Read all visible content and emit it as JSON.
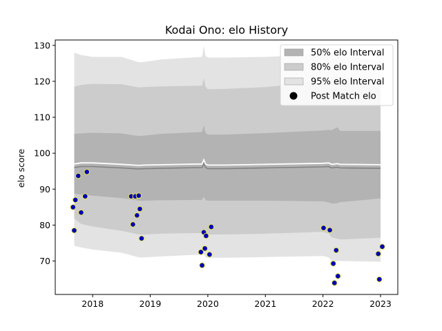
{
  "chart_data": {
    "type": "line",
    "title": "Kodai Ono: elo History",
    "xlabel": "",
    "ylabel": "elo score",
    "xlim": [
      2017.35,
      2023.3
    ],
    "ylim": [
      60.7,
      131.5
    ],
    "xticks": [
      2018,
      2019,
      2020,
      2021,
      2022,
      2023
    ],
    "yticks": [
      70,
      80,
      90,
      100,
      110,
      120,
      130
    ],
    "legend_placement": "upper right",
    "legend": [
      {
        "label": "50% elo Interval",
        "kind": "band",
        "color": "#b3b3b3"
      },
      {
        "label": "80% elo Interval",
        "kind": "band",
        "color": "#cccccc"
      },
      {
        "label": "95% elo Interval",
        "kind": "band",
        "color": "#e3e3e3"
      },
      {
        "label": "Post Match elo",
        "kind": "point",
        "color": "#000000"
      }
    ],
    "timeline": [
      2017.68,
      2017.8,
      2018.0,
      2018.5,
      2018.8,
      2018.9,
      2019.2,
      2019.9,
      2019.93,
      2019.96,
      2020.0,
      2020.3,
      2021.0,
      2022.0,
      2022.1,
      2022.15,
      2022.25,
      2022.3,
      2023.0
    ],
    "median": [
      96.0,
      96.3,
      96.3,
      95.9,
      95.6,
      95.7,
      95.8,
      96.0,
      97.2,
      96.0,
      95.7,
      95.7,
      95.9,
      96.2,
      96.3,
      95.9,
      96.1,
      95.9,
      95.8
    ],
    "band_50": {
      "upper": [
        105.4,
        105.5,
        105.7,
        105.5,
        104.8,
        104.9,
        105.4,
        105.9,
        107.8,
        105.7,
        105.2,
        105.2,
        105.6,
        106.3,
        106.5,
        106.4,
        107.2,
        106.2,
        106.2
      ],
      "lower": [
        88.8,
        88.5,
        88.2,
        87.5,
        86.8,
        86.8,
        86.9,
        87.0,
        87.9,
        86.9,
        86.8,
        86.8,
        86.8,
        86.6,
        86.3,
        86.0,
        86.1,
        86.4,
        87.4
      ]
    },
    "band_80": {
      "upper": [
        118.5,
        119.0,
        119.3,
        119.2,
        118.3,
        118.4,
        118.6,
        118.8,
        121.0,
        118.5,
        117.8,
        117.9,
        118.4,
        120.0,
        120.7,
        121.0,
        121.8,
        121.0,
        119.5
      ]
    },
    "band_80_lower": [
      81.8,
      80.3,
      79.6,
      78.4,
      77.4,
      77.4,
      77.6,
      77.8,
      78.3,
      77.5,
      77.4,
      77.4,
      77.6,
      78.1,
      77.6,
      76.6,
      76.2,
      76.0,
      76.5
    ],
    "band_95": {
      "upper": [
        128.0,
        127.3,
        126.8,
        126.8,
        125.3,
        125.4,
        126.1,
        126.8,
        129.9,
        127.1,
        126.6,
        126.6,
        126.8,
        127.5,
        127.8,
        127.4,
        127.9,
        127.0,
        125.8
      ],
      "lower": [
        74.2,
        73.8,
        73.2,
        72.3,
        71.0,
        71.0,
        71.3,
        71.8,
        72.0,
        71.0,
        70.9,
        70.9,
        71.1,
        71.4,
        71.0,
        70.0,
        70.0,
        70.0,
        69.8
      ]
    },
    "post_match_elo": {
      "x": [
        2017.66,
        2017.68,
        2017.7,
        2017.75,
        2017.8,
        2017.87,
        2017.9,
        2018.67,
        2018.7,
        2018.74,
        2018.77,
        2018.8,
        2018.82,
        2018.85,
        2019.88,
        2019.9,
        2019.93,
        2019.95,
        2019.97,
        2020.03,
        2020.06,
        2022.01,
        2022.12,
        2022.18,
        2022.23,
        2022.26,
        2022.2,
        2022.96,
        2023.03,
        2022.98
      ],
      "y": [
        85.0,
        78.5,
        87.0,
        93.7,
        83.5,
        88.0,
        94.8,
        88.0,
        80.2,
        88.0,
        82.7,
        88.2,
        84.5,
        76.3,
        72.5,
        68.8,
        78.0,
        73.5,
        77.0,
        71.8,
        79.5,
        79.2,
        78.6,
        69.3,
        73.0,
        65.8,
        63.9,
        72.0,
        74.0,
        64.9
      ]
    }
  }
}
